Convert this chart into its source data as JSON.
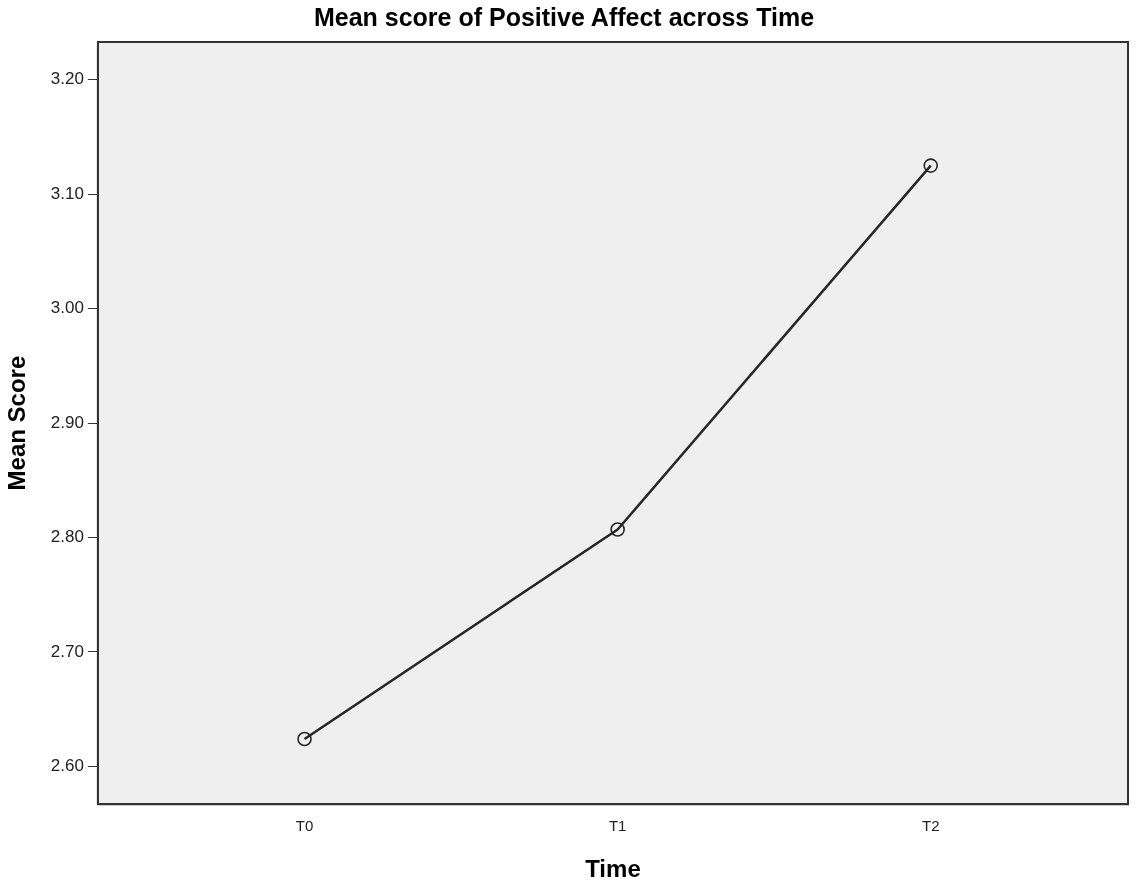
{
  "chart_data": {
    "type": "line",
    "title": "Mean score of Positive Affect across Time",
    "xlabel": "Time",
    "ylabel": "Mean Score",
    "categories": [
      "T0",
      "T1",
      "T2"
    ],
    "series": [
      {
        "color": "#262626",
        "values": [
          2.624,
          2.807,
          3.125
        ]
      }
    ],
    "ylim": [
      2.567,
      3.233
    ],
    "yticks": [
      {
        "value": 2.6,
        "label": "2.60"
      },
      {
        "value": 2.7,
        "label": "2.70"
      },
      {
        "value": 2.8,
        "label": "2.80"
      },
      {
        "value": 2.9,
        "label": "2.90"
      },
      {
        "value": 3.0,
        "label": "3.00"
      },
      {
        "value": 3.1,
        "label": "3.10"
      },
      {
        "value": 3.2,
        "label": "3.20"
      }
    ],
    "grid": false,
    "legend": false,
    "marker": "circle",
    "line_style": "solid"
  }
}
